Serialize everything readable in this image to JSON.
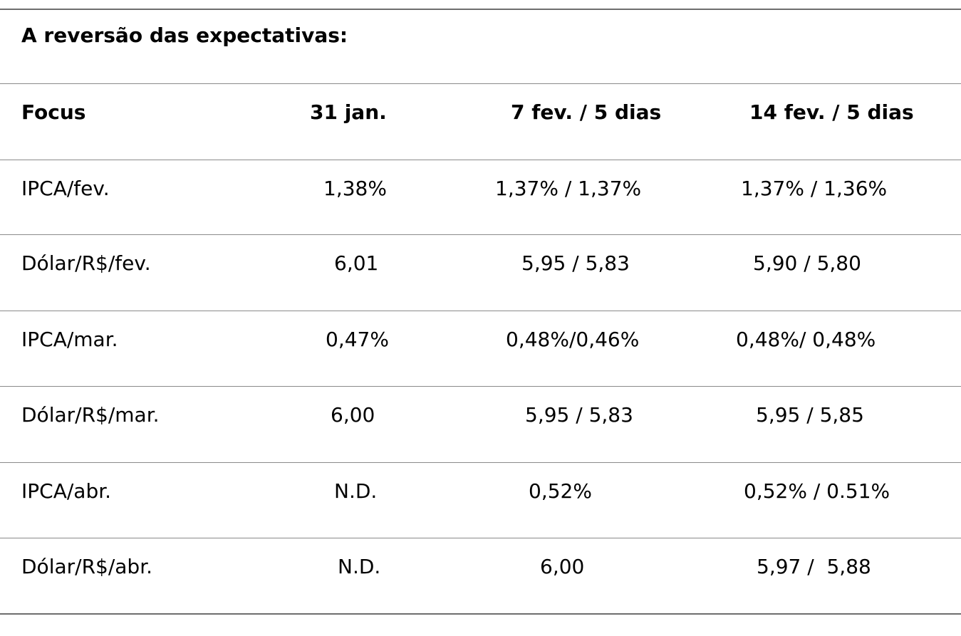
{
  "table": {
    "title": "A reversão das expectativas:",
    "headers": [
      "Focus",
      "31 jan.",
      "7 fev. / 5 dias",
      "14 fev. / 5 dias"
    ],
    "rows": [
      [
        "IPCA/fev.",
        "1,38%",
        "1,37% / 1,37%",
        "1,37% / 1,36%"
      ],
      [
        "Dólar/R$/fev.",
        "6,01",
        "5,95 / 5,83",
        "5,90 / 5,80"
      ],
      [
        "IPCA/mar.",
        "0,47%",
        "0,48%/0,46%",
        "0,48%/ 0,48%"
      ],
      [
        "Dólar/R$/mar.",
        "6,00",
        "5,95 / 5,83",
        "5,95 / 5,85"
      ],
      [
        "IPCA/abr.",
        "N.D.",
        "0,52%",
        "0,52% / 0.51%"
      ],
      [
        "Dólar/R$/abr.",
        "N.D.",
        "6,00",
        "5,97 /  5,88"
      ]
    ]
  }
}
